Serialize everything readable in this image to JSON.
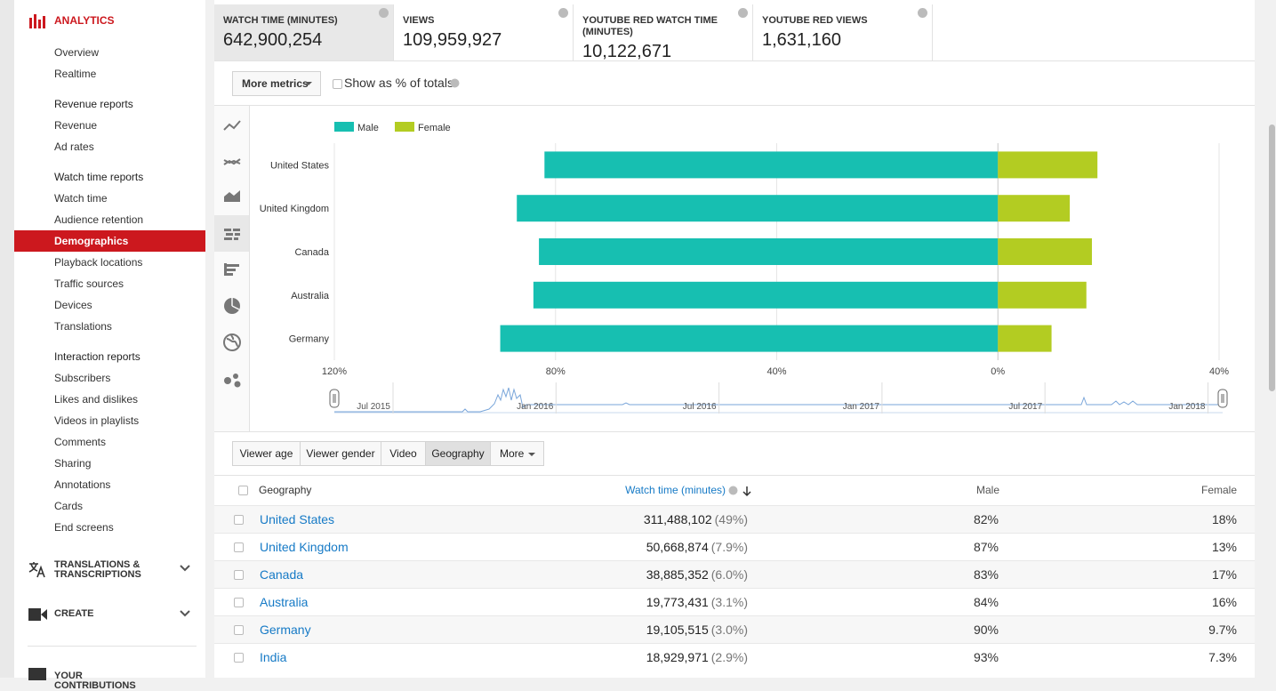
{
  "sidebar": {
    "title": "ANALYTICS",
    "sections": [
      {
        "items": [
          "Overview",
          "Realtime"
        ]
      },
      {
        "heading": "Revenue reports",
        "items": [
          "Revenue",
          "Ad rates"
        ]
      },
      {
        "heading": "Watch time reports",
        "items": [
          "Watch time",
          "Audience retention",
          "Demographics",
          "Playback locations",
          "Traffic sources",
          "Devices",
          "Translations"
        ]
      },
      {
        "heading": "Interaction reports",
        "items": [
          "Subscribers",
          "Likes and dislikes",
          "Videos in playlists",
          "Comments",
          "Sharing",
          "Annotations",
          "Cards",
          "End screens"
        ]
      }
    ],
    "menus": [
      "TRANSLATIONS & TRANSCRIPTIONS",
      "CREATE",
      "YOUR CONTRIBUTIONS"
    ]
  },
  "metrics": [
    {
      "label": "WATCH TIME (MINUTES)",
      "value": "642,900,254"
    },
    {
      "label": "VIEWS",
      "value": "109,959,927"
    },
    {
      "label": "YOUTUBE RED WATCH TIME (MINUTES)",
      "value": "10,122,671"
    },
    {
      "label": "YOUTUBE RED VIEWS",
      "value": "1,631,160"
    }
  ],
  "controls": {
    "more_metrics": "More metrics",
    "show_percent": "Show as % of totals"
  },
  "chart_data": {
    "type": "diverging_bar",
    "legend": "top-left",
    "grid": true,
    "categories": [
      "United States",
      "United Kingdom",
      "Canada",
      "Australia",
      "Germany"
    ],
    "series": [
      {
        "name": "Male",
        "color": "#17bfb1",
        "values": [
          82,
          87,
          83,
          84,
          90
        ]
      },
      {
        "name": "Female",
        "color": "#b3cc22",
        "values": [
          18,
          13,
          17,
          16,
          9.7
        ]
      }
    ],
    "xlim": [
      -120,
      40
    ],
    "xticks": [
      {
        "value": -120,
        "label": "120%"
      },
      {
        "value": -80,
        "label": "80%"
      },
      {
        "value": -40,
        "label": "40%"
      },
      {
        "value": 0,
        "label": "0%"
      },
      {
        "value": 40,
        "label": "40%"
      }
    ]
  },
  "timeline": {
    "labels": [
      "Jul 2015",
      "Jan 2016",
      "Jul 2016",
      "Jan 2017",
      "Jul 2017",
      "Jan 2018"
    ]
  },
  "tabs": [
    "Viewer age",
    "Viewer gender",
    "Video",
    "Geography",
    "More"
  ],
  "table": {
    "columns": [
      "Geography",
      "Watch time (minutes)",
      "Male",
      "Female"
    ],
    "rows": [
      {
        "geography": "United States",
        "watch_time": "311,488,102",
        "share": "(49%)",
        "male": "82%",
        "female": "18%"
      },
      {
        "geography": "United Kingdom",
        "watch_time": "50,668,874",
        "share": "(7.9%)",
        "male": "87%",
        "female": "13%"
      },
      {
        "geography": "Canada",
        "watch_time": "38,885,352",
        "share": "(6.0%)",
        "male": "83%",
        "female": "17%"
      },
      {
        "geography": "Australia",
        "watch_time": "19,773,431",
        "share": "(3.1%)",
        "male": "84%",
        "female": "16%"
      },
      {
        "geography": "Germany",
        "watch_time": "19,105,515",
        "share": "(3.0%)",
        "male": "90%",
        "female": "9.7%"
      },
      {
        "geography": "India",
        "watch_time": "18,929,971",
        "share": "(2.9%)",
        "male": "93%",
        "female": "7.3%"
      }
    ]
  }
}
